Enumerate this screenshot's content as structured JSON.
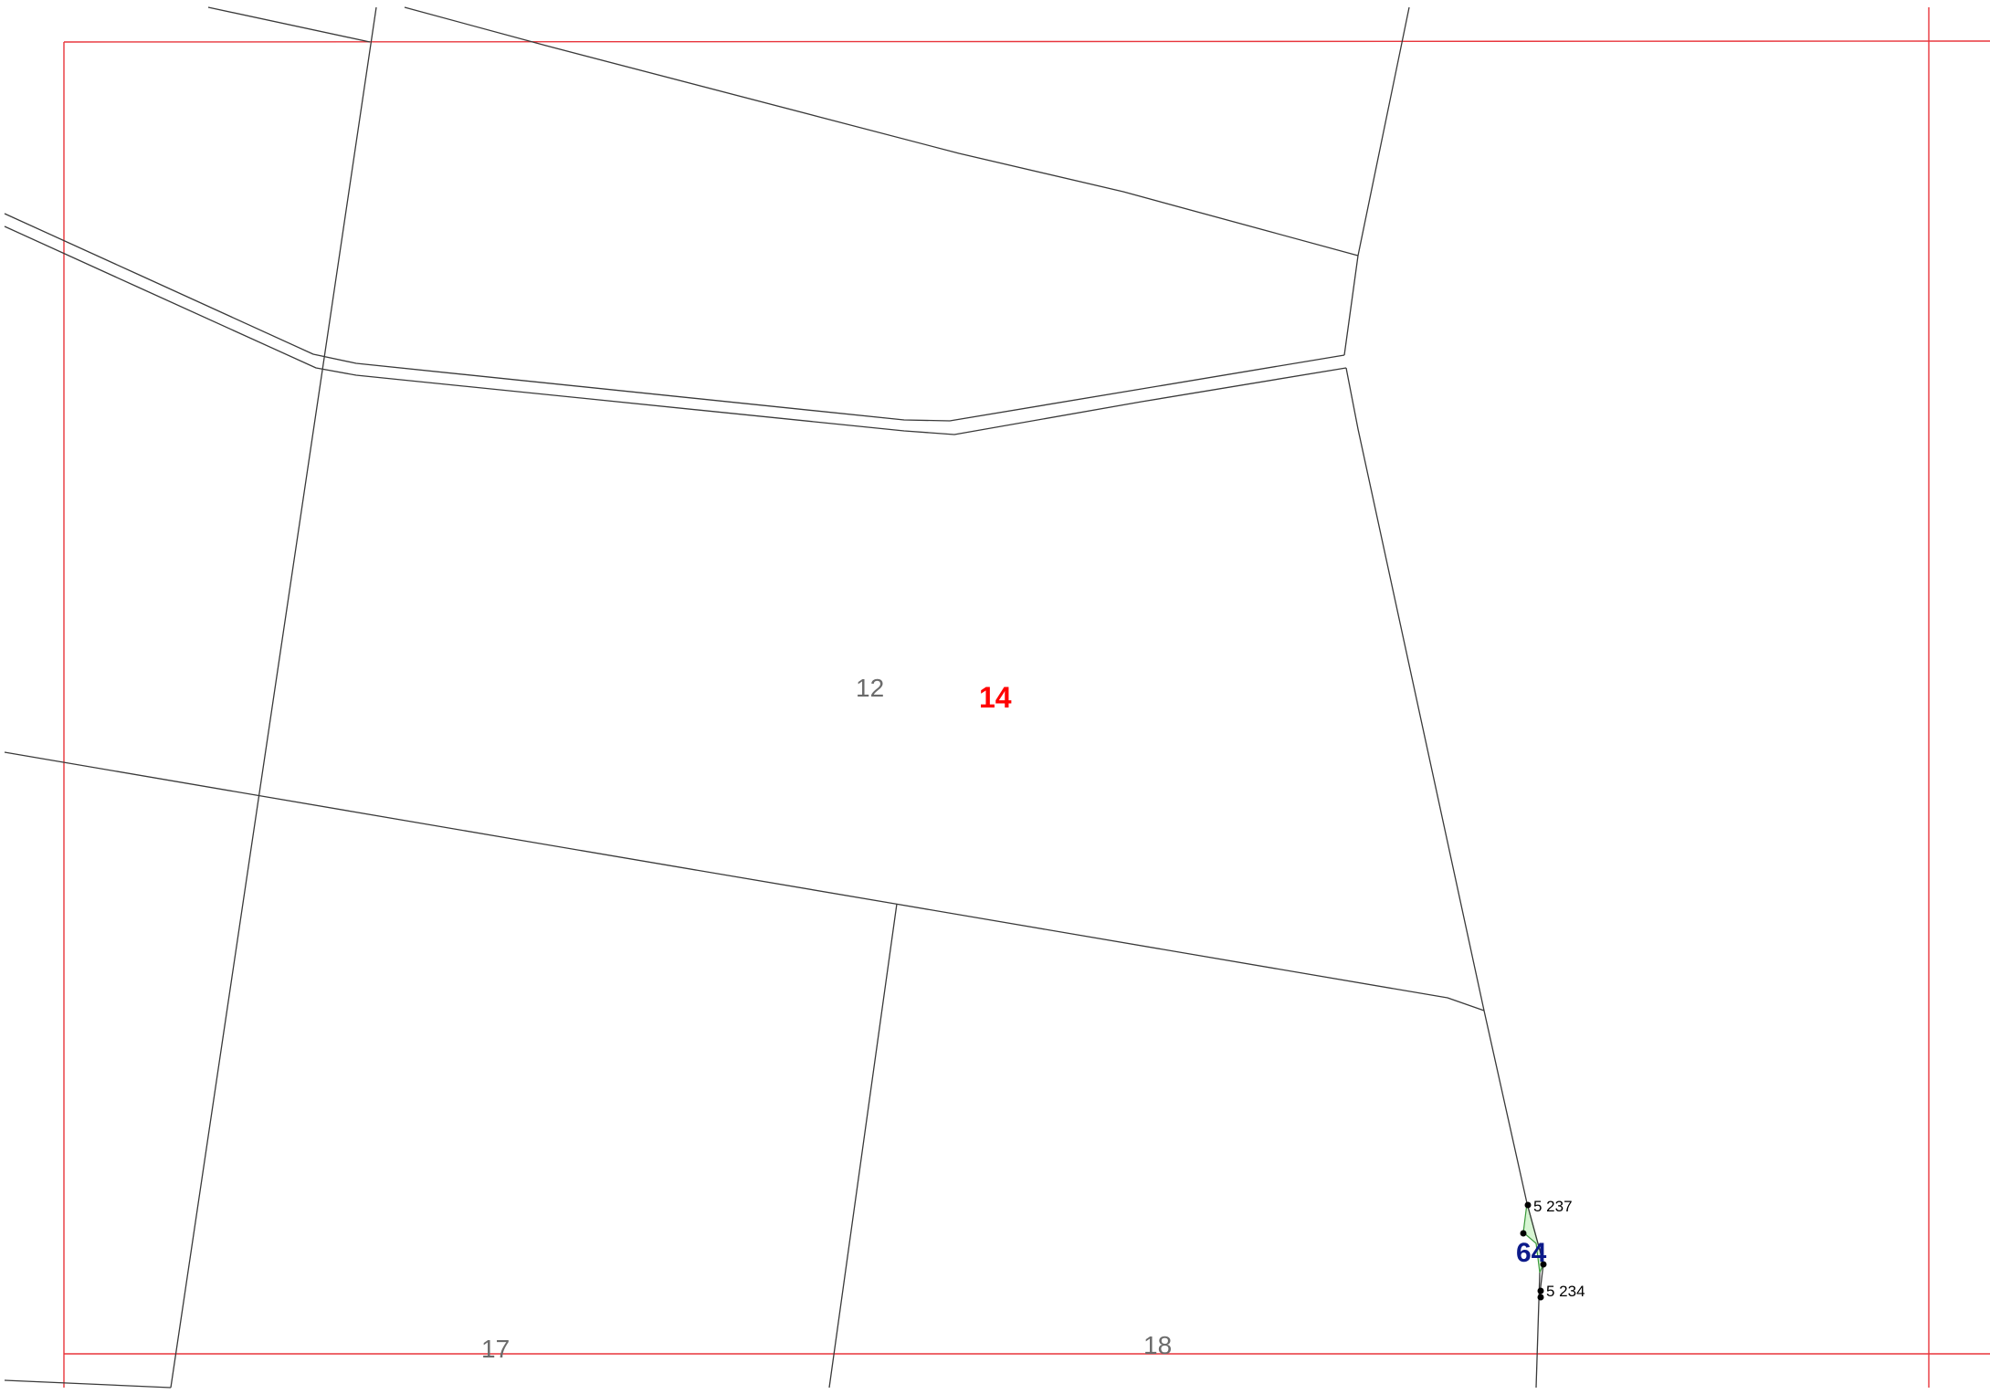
{
  "map": {
    "colors": {
      "background": "#ffffff",
      "frame": "#e8353c",
      "parcel_line": "#3a3a3a",
      "highlight_fill": "#d7f5d3",
      "highlight_stroke": "#3a9a3a",
      "parcel_label": "#6b6b6b",
      "selected_label": "#ff0000",
      "selected_parcel_number": "#0c1a8a",
      "point_label": "#000000",
      "point_marker": "#000000"
    },
    "labels": {
      "parcel_12": "12",
      "parcel_14": "14",
      "parcel_17": "17",
      "parcel_18": "18",
      "parcel_64": "64"
    },
    "points": {
      "point_5237": "5 237",
      "point_5234": "5 234"
    }
  }
}
